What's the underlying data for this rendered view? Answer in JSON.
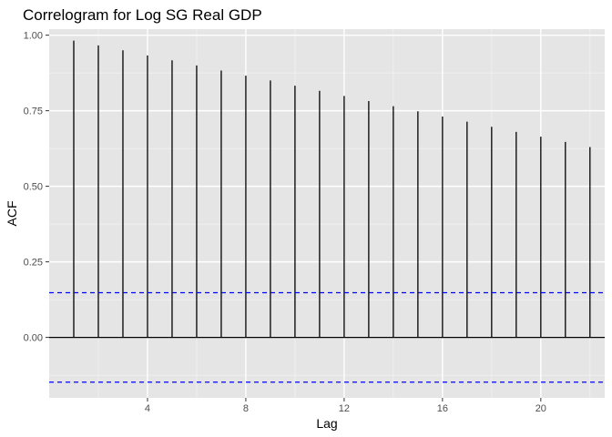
{
  "chart_data": {
    "type": "bar",
    "title": "Correlogram for Log SG Real GDP",
    "xlabel": "Lag",
    "ylabel": "ACF",
    "xlim": [
      0,
      22.6
    ],
    "ylim": [
      -0.2,
      1.02
    ],
    "x_ticks": [
      4,
      8,
      12,
      16,
      20
    ],
    "x_tick_labels": [
      "4",
      "8",
      "12",
      "16",
      "20"
    ],
    "y_ticks": [
      0,
      0.25,
      0.5,
      0.75,
      1
    ],
    "y_tick_labels": [
      "0.00",
      "0.25",
      "0.50",
      "0.75",
      "1.00"
    ],
    "lags": [
      1,
      2,
      3,
      4,
      5,
      6,
      7,
      8,
      9,
      10,
      11,
      12,
      13,
      14,
      15,
      16,
      17,
      18,
      19,
      20,
      21,
      22
    ],
    "values": [
      0.982,
      0.966,
      0.95,
      0.933,
      0.917,
      0.9,
      0.883,
      0.866,
      0.85,
      0.833,
      0.816,
      0.799,
      0.782,
      0.765,
      0.748,
      0.731,
      0.714,
      0.697,
      0.68,
      0.664,
      0.647,
      0.63
    ],
    "confidence_bounds": [
      0.148,
      -0.148
    ],
    "grid": true,
    "legend": "none",
    "colors": {
      "panel": "#e5e5e5",
      "grid_major": "#ffffff",
      "grid_minor": "#f2f2f2",
      "bar": "#000000",
      "confidence": "#0000ff",
      "zero_line": "#000000"
    }
  }
}
